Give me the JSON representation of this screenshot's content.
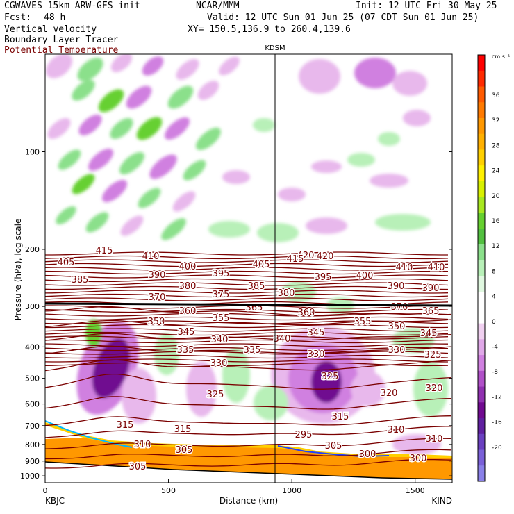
{
  "header": {
    "title_left": "CGWAVES 15km ARW-GFS init",
    "title_center": "NCAR/MMM",
    "init": "Init: 12 UTC Fri 30 May 25",
    "fcst_label": "Fcst:",
    "fcst_value": "48 h",
    "valid": "Valid: 12 UTC Sun 01 Jun 25 (07 CDT Sun 01 Jun 25)",
    "field1": "Vertical velocity",
    "field2": "Boundary Layer Tracer",
    "field3": "Potential Temperature",
    "xy": "XY= 150.5,136.9 to 260.4,139.6",
    "field3_color": "#7a0000"
  },
  "chart_data": {
    "type": "heatmap",
    "title": "KDSM",
    "xlabel": "Distance (km)",
    "ylabel": "Pressure (hPa), log scale",
    "xlim": [
      0,
      1650
    ],
    "ylim": [
      1050,
      50
    ],
    "y_scale": "log",
    "x_ticks": [
      0,
      500,
      1000,
      1500
    ],
    "y_ticks": [
      100,
      200,
      300,
      400,
      500,
      600,
      700,
      800,
      900,
      1000
    ],
    "x_end_labels": {
      "left": "KBJC",
      "right": "KIND"
    },
    "vertical_marker": {
      "x": 935,
      "label": "KDSM"
    },
    "colorbar": {
      "unit": "cm s⁻¹",
      "tick_labels": [
        "36",
        "32",
        "28",
        "24",
        "20",
        "16",
        "12",
        "8",
        "4",
        "0",
        "-4",
        "-8",
        "-12",
        "-16",
        "-20"
      ],
      "colors": [
        "#ff0000",
        "#ff2a00",
        "#ff5a00",
        "#ff7a00",
        "#ff9800",
        "#ffb000",
        "#ffd000",
        "#fff000",
        "#d8f000",
        "#a8e820",
        "#66d030",
        "#52c040",
        "#8be08b",
        "#b8f0b8",
        "#e0f8e0",
        "#ffffff",
        "#ffffff",
        "#f0d0f0",
        "#e0a8e8",
        "#d080e0",
        "#b050c8",
        "#9030b0",
        "#700a90",
        "#6020a0",
        "#6a40c0",
        "#7a60d8",
        "#8a80e8"
      ]
    },
    "theta_contour_labels": [
      "415",
      "420",
      "405",
      "410",
      "400",
      "410",
      "410",
      "385",
      "390",
      "395",
      "405",
      "415",
      "420",
      "395",
      "400",
      "390",
      "390",
      "380",
      "385",
      "375",
      "380",
      "370",
      "370",
      "365",
      "360",
      "365",
      "360",
      "350",
      "355",
      "355",
      "350",
      "345",
      "340",
      "340",
      "345",
      "345",
      "335",
      "335",
      "330",
      "330",
      "330",
      "325",
      "325",
      "325",
      "320",
      "320",
      "315",
      "315",
      "315",
      "310",
      "310",
      "310",
      "305",
      "305",
      "305",
      "300",
      "300",
      "295"
    ],
    "potential_temperature_range": [
      295,
      420
    ]
  }
}
